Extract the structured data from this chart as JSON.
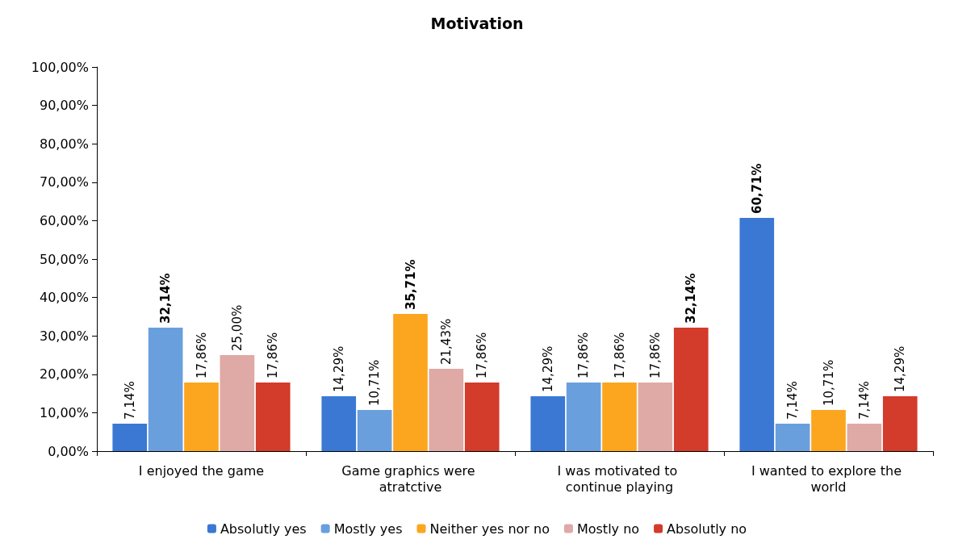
{
  "chart_data": {
    "type": "bar",
    "title": "Motivation",
    "categories": [
      "I enjoyed the game",
      "Game graphics were atratctive",
      "I was motivated to continue playing",
      "I wanted to explore the world"
    ],
    "series": [
      {
        "name": "Absolutly yes",
        "color": "#3a78d4",
        "values": [
          7.14,
          14.29,
          14.29,
          60.71
        ],
        "value_labels": [
          "7,14%",
          "14,29%",
          "14,29%",
          "60,71%"
        ]
      },
      {
        "name": "Mostly yes",
        "color": "#6a9fde",
        "values": [
          32.14,
          10.71,
          17.86,
          7.14
        ],
        "value_labels": [
          "32,14%",
          "10,71%",
          "17,86%",
          "7,14%"
        ]
      },
      {
        "name": "Neither yes nor no",
        "color": "#fba61e",
        "values": [
          17.86,
          35.71,
          17.86,
          10.71
        ],
        "value_labels": [
          "17,86%",
          "35,71%",
          "17,86%",
          "10,71%"
        ]
      },
      {
        "name": "Mostly no",
        "color": "#dfa9a5",
        "values": [
          25.0,
          21.43,
          17.86,
          7.14
        ],
        "value_labels": [
          "25,00%",
          "21,43%",
          "17,86%",
          "7,14%"
        ]
      },
      {
        "name": "Absolutly no",
        "color": "#d33b2a",
        "values": [
          17.86,
          17.86,
          32.14,
          14.29
        ],
        "value_labels": [
          "17,86%",
          "17,86%",
          "32,14%",
          "14,29%"
        ]
      }
    ],
    "ylim": [
      0,
      100
    ],
    "yticks": [
      {
        "value": 0,
        "label": "0,00%"
      },
      {
        "value": 10,
        "label": "10,00%"
      },
      {
        "value": 20,
        "label": "20,00%"
      },
      {
        "value": 30,
        "label": "30,00%"
      },
      {
        "value": 40,
        "label": "40,00%"
      },
      {
        "value": 50,
        "label": "50,00%"
      },
      {
        "value": 60,
        "label": "60,00%"
      },
      {
        "value": 70,
        "label": "70,00%"
      },
      {
        "value": 80,
        "label": "80,00%"
      },
      {
        "value": 90,
        "label": "90,00%"
      },
      {
        "value": 100,
        "label": "100,00%"
      }
    ],
    "grid": false,
    "legend": "bottom"
  }
}
